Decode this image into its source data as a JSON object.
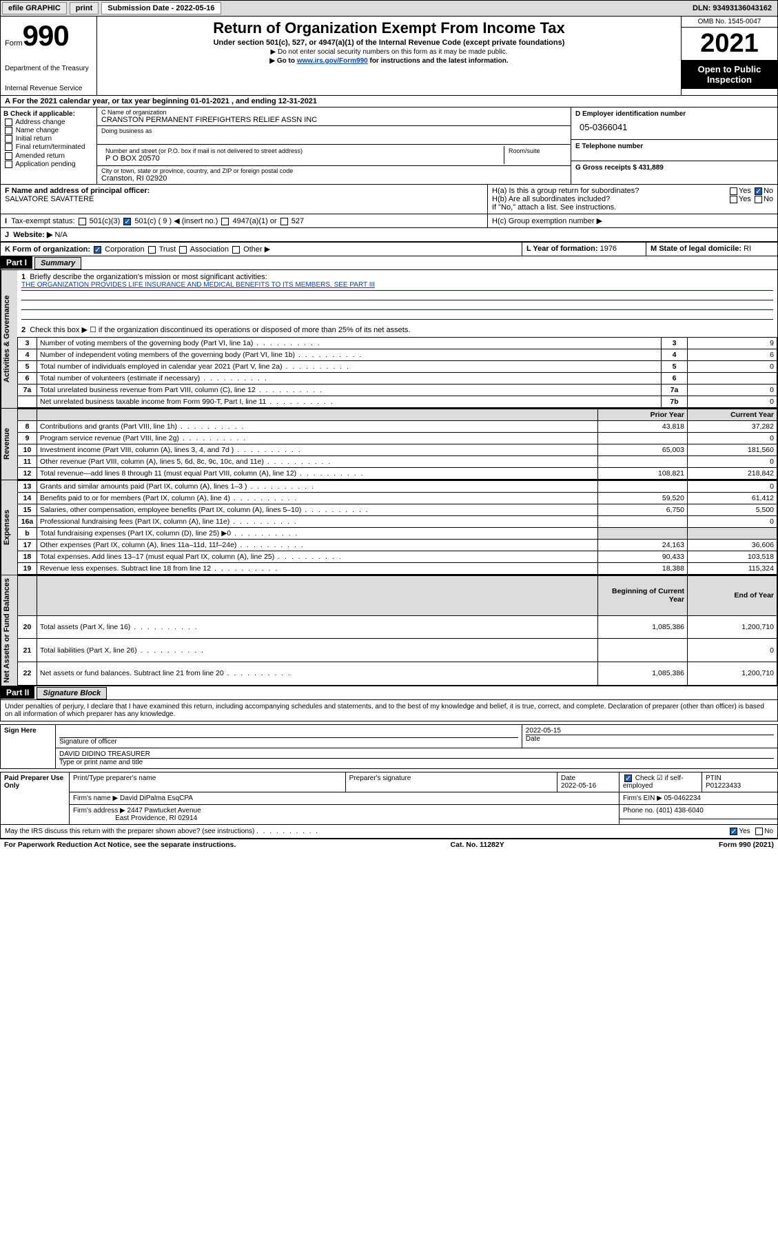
{
  "topbar": {
    "efile": "efile GRAPHIC",
    "print": "print",
    "submission_label": "Submission Date - 2022-05-16",
    "dln": "DLN: 93493136043162"
  },
  "header": {
    "form_prefix": "Form",
    "form_number": "990",
    "title": "Return of Organization Exempt From Income Tax",
    "subtitle": "Under section 501(c), 527, or 4947(a)(1) of the Internal Revenue Code (except private foundations)",
    "note1": "▶ Do not enter social security numbers on this form as it may be made public.",
    "note2_pre": "▶ Go to ",
    "note2_link": "www.irs.gov/Form990",
    "note2_post": " for instructions and the latest information.",
    "dept": "Department of the Treasury",
    "irs": "Internal Revenue Service",
    "omb": "OMB No. 1545-0047",
    "year": "2021",
    "open_public": "Open to Public Inspection"
  },
  "period": "For the 2021 calendar year, or tax year beginning 01-01-2021   , and ending 12-31-2021",
  "section_b": {
    "b_label": "B Check if applicable:",
    "checks": [
      "Address change",
      "Name change",
      "Initial return",
      "Final return/terminated",
      "Amended return",
      "Application pending"
    ],
    "c_label": "C Name of organization",
    "org_name": "CRANSTON PERMANENT FIREFIGHTERS RELIEF ASSN INC",
    "dba_label": "Doing business as",
    "addr_label": "Number and street (or P.O. box if mail is not delivered to street address)",
    "room_label": "Room/suite",
    "addr": "P O BOX 20570",
    "city_label": "City or town, state or province, country, and ZIP or foreign postal code",
    "city": "Cranston, RI  02920",
    "d_label": "D Employer identification number",
    "ein": "05-0366041",
    "e_label": "E Telephone number",
    "g_label": "G Gross receipts $",
    "g_val": "431,889",
    "f_label": "F Name and address of principal officer:",
    "officer": "SALVATORE SAVATTERE",
    "ha": "H(a)  Is this a group return for subordinates?",
    "hb": "H(b)  Are all subordinates included?",
    "hb_note": "If \"No,\" attach a list. See instructions.",
    "hc": "H(c)  Group exemption number ▶",
    "yes": "Yes",
    "no": "No"
  },
  "tax_status": {
    "label": "Tax-exempt status:",
    "c3": "501(c)(3)",
    "c": "501(c) ( 9 ) ◀ (insert no.)",
    "a1": "4947(a)(1) or",
    "s527": "527"
  },
  "website": {
    "label": "Website: ▶",
    "val": "N/A"
  },
  "k": {
    "label": "K Form of organization:",
    "corp": "Corporation",
    "trust": "Trust",
    "assoc": "Association",
    "other": "Other ▶"
  },
  "l": {
    "label": "L Year of formation:",
    "val": "1976"
  },
  "m": {
    "label": "M State of legal domicile:",
    "val": "RI"
  },
  "part1": {
    "header": "Part I",
    "title": "Summary",
    "q1": "Briefly describe the organization's mission or most significant activities:",
    "mission": "THE ORGANIZATION PROVIDES LIFE INSURANCE AND MEDICAL BENEFITS TO ITS MEMBERS. SEE PART III",
    "q2": "Check this box ▶ ☐  if the organization discontinued its operations or disposed of more than 25% of its net assets.",
    "rows_gov": [
      {
        "n": "3",
        "t": "Number of voting members of the governing body (Part VI, line 1a)",
        "c": "3",
        "v": "9"
      },
      {
        "n": "4",
        "t": "Number of independent voting members of the governing body (Part VI, line 1b)",
        "c": "4",
        "v": "6"
      },
      {
        "n": "5",
        "t": "Total number of individuals employed in calendar year 2021 (Part V, line 2a)",
        "c": "5",
        "v": "0"
      },
      {
        "n": "6",
        "t": "Total number of volunteers (estimate if necessary)",
        "c": "6",
        "v": ""
      },
      {
        "n": "7a",
        "t": "Total unrelated business revenue from Part VIII, column (C), line 12",
        "c": "7a",
        "v": "0"
      },
      {
        "n": "",
        "t": "Net unrelated business taxable income from Form 990-T, Part I, line 11",
        "c": "7b",
        "v": "0"
      }
    ],
    "col_prior": "Prior Year",
    "col_current": "Current Year",
    "rows_rev": [
      {
        "n": "8",
        "t": "Contributions and grants (Part VIII, line 1h)",
        "p": "43,818",
        "c": "37,282"
      },
      {
        "n": "9",
        "t": "Program service revenue (Part VIII, line 2g)",
        "p": "",
        "c": "0"
      },
      {
        "n": "10",
        "t": "Investment income (Part VIII, column (A), lines 3, 4, and 7d )",
        "p": "65,003",
        "c": "181,560"
      },
      {
        "n": "11",
        "t": "Other revenue (Part VIII, column (A), lines 5, 6d, 8c, 9c, 10c, and 11e)",
        "p": "",
        "c": "0"
      },
      {
        "n": "12",
        "t": "Total revenue—add lines 8 through 11 (must equal Part VIII, column (A), line 12)",
        "p": "108,821",
        "c": "218,842"
      }
    ],
    "rows_exp": [
      {
        "n": "13",
        "t": "Grants and similar amounts paid (Part IX, column (A), lines 1–3 )",
        "p": "",
        "c": "0"
      },
      {
        "n": "14",
        "t": "Benefits paid to or for members (Part IX, column (A), line 4)",
        "p": "59,520",
        "c": "61,412"
      },
      {
        "n": "15",
        "t": "Salaries, other compensation, employee benefits (Part IX, column (A), lines 5–10)",
        "p": "6,750",
        "c": "5,500"
      },
      {
        "n": "16a",
        "t": "Professional fundraising fees (Part IX, column (A), line 11e)",
        "p": "",
        "c": "0"
      },
      {
        "n": "b",
        "t": "Total fundraising expenses (Part IX, column (D), line 25) ▶0",
        "p": "",
        "c": "",
        "shade": true
      },
      {
        "n": "17",
        "t": "Other expenses (Part IX, column (A), lines 11a–11d, 11f–24e)",
        "p": "24,163",
        "c": "36,606"
      },
      {
        "n": "18",
        "t": "Total expenses. Add lines 13–17 (must equal Part IX, column (A), line 25)",
        "p": "90,433",
        "c": "103,518"
      },
      {
        "n": "19",
        "t": "Revenue less expenses. Subtract line 18 from line 12",
        "p": "18,388",
        "c": "115,324"
      }
    ],
    "col_begin": "Beginning of Current Year",
    "col_end": "End of Year",
    "rows_net": [
      {
        "n": "20",
        "t": "Total assets (Part X, line 16)",
        "p": "1,085,386",
        "c": "1,200,710"
      },
      {
        "n": "21",
        "t": "Total liabilities (Part X, line 26)",
        "p": "",
        "c": "0"
      },
      {
        "n": "22",
        "t": "Net assets or fund balances. Subtract line 21 from line 20",
        "p": "1,085,386",
        "c": "1,200,710"
      }
    ],
    "vtabs": {
      "gov": "Activities & Governance",
      "rev": "Revenue",
      "exp": "Expenses",
      "net": "Net Assets or Fund Balances"
    }
  },
  "part2": {
    "header": "Part II",
    "title": "Signature Block",
    "perjury": "Under penalties of perjury, I declare that I have examined this return, including accompanying schedules and statements, and to the best of my knowledge and belief, it is true, correct, and complete. Declaration of preparer (other than officer) is based on all information of which preparer has any knowledge.",
    "sign_here": "Sign Here",
    "sig_officer": "Signature of officer",
    "sig_date": "Date",
    "sig_date_val": "2022-05-15",
    "officer_name": "DAVID DIDINO  TREASURER",
    "type_name": "Type or print name and title",
    "paid": "Paid Preparer Use Only",
    "prep_name_lbl": "Print/Type preparer's name",
    "prep_sig_lbl": "Preparer's signature",
    "prep_date_lbl": "Date",
    "prep_date": "2022-05-16",
    "check_self": "Check ☑ if self-employed",
    "ptin_lbl": "PTIN",
    "ptin": "P01223433",
    "firm_name_lbl": "Firm's name    ▶",
    "firm_name": "David DiPalma EsqCPA",
    "firm_ein_lbl": "Firm's EIN ▶",
    "firm_ein": "05-0462234",
    "firm_addr_lbl": "Firm's address ▶",
    "firm_addr1": "2447 Pawtucket Avenue",
    "firm_addr2": "East Providence, RI  02914",
    "phone_lbl": "Phone no.",
    "phone": "(401) 438-6040",
    "discuss": "May the IRS discuss this return with the preparer shown above? (see instructions)"
  },
  "footer": {
    "pra": "For Paperwork Reduction Act Notice, see the separate instructions.",
    "cat": "Cat. No. 11282Y",
    "form": "Form 990 (2021)"
  }
}
